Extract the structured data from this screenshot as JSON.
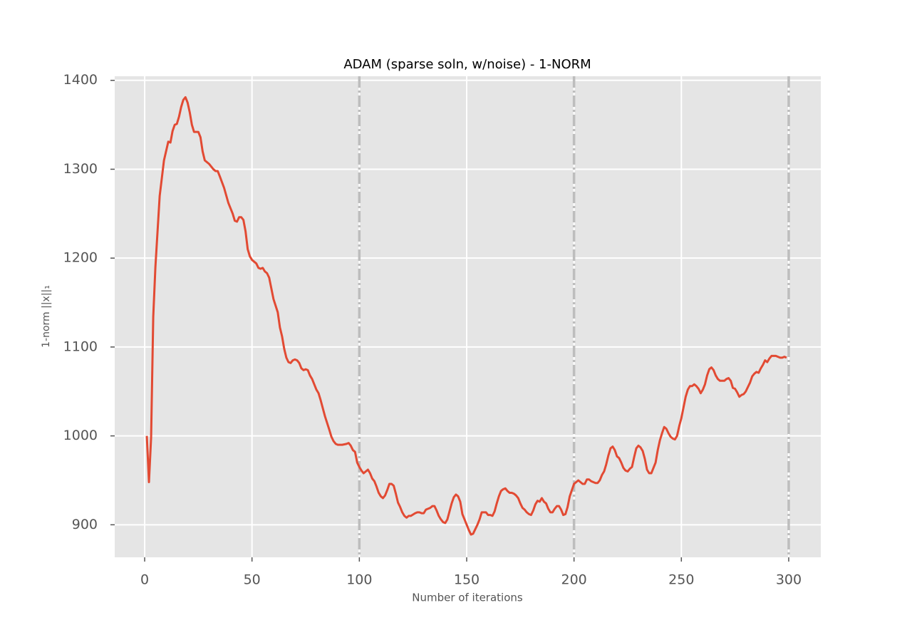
{
  "chart_data": {
    "type": "line",
    "title": "ADAM (sparse soln, w/noise) - 1-NORM",
    "xlabel": "Number of iterations",
    "ylabel": "1-norm ||x||₁",
    "color": "#e24a33",
    "grid": true,
    "xlim": [
      -13.95,
      314.95
    ],
    "ylim": [
      863.4,
      1404.6
    ],
    "xticks": [
      0,
      50,
      100,
      150,
      200,
      250,
      300
    ],
    "yticks": [
      900,
      1000,
      1100,
      1200,
      1300,
      1400
    ],
    "vlines": [
      100,
      200,
      300
    ],
    "vline_color": "#bdbdbd",
    "x": [
      1,
      2,
      3,
      4,
      5,
      7,
      9,
      11,
      12,
      13,
      14,
      15,
      16,
      17,
      18,
      19,
      20,
      21,
      22,
      23,
      24,
      25,
      26,
      27,
      28,
      30,
      32,
      33,
      34,
      35,
      37,
      39,
      41,
      42,
      43,
      44,
      45,
      46,
      47,
      48,
      49,
      50,
      51,
      52,
      53,
      54,
      55,
      56,
      57,
      58,
      59,
      60,
      62,
      63,
      64,
      65,
      66,
      67,
      68,
      69,
      70,
      71,
      72,
      73,
      74,
      75,
      76,
      77,
      78,
      79,
      80,
      81,
      82,
      83,
      84,
      86,
      87,
      88,
      89,
      90,
      92,
      94,
      95,
      96,
      97,
      98,
      99,
      100,
      101,
      102,
      103,
      104,
      105,
      106,
      107,
      108,
      109,
      110,
      111,
      112,
      113,
      114,
      115,
      116,
      117,
      118,
      119,
      120,
      121,
      122,
      123,
      124,
      126,
      127,
      128,
      129,
      130,
      131,
      133,
      134,
      135,
      136,
      137,
      138,
      139,
      140,
      141,
      142,
      143,
      144,
      145,
      146,
      147,
      148,
      149,
      150,
      151,
      152,
      153,
      154,
      155,
      156,
      157,
      158,
      159,
      160,
      161,
      162,
      163,
      164,
      165,
      166,
      167,
      168,
      169,
      170,
      171,
      172,
      173,
      174,
      175,
      176,
      177,
      178,
      179,
      180,
      181,
      182,
      183,
      184,
      185,
      186,
      187,
      188,
      189,
      190,
      191,
      192,
      193,
      194,
      195,
      196,
      197,
      198,
      199,
      200,
      201,
      202,
      203,
      204,
      205,
      206,
      207,
      208,
      209,
      210,
      211,
      212,
      213,
      214,
      215,
      216,
      217,
      218,
      219,
      220,
      221,
      222,
      223,
      224,
      225,
      226,
      227,
      228,
      229,
      230,
      231,
      232,
      233,
      234,
      235,
      236,
      237,
      238,
      239,
      240,
      241,
      242,
      243,
      244,
      245,
      246,
      247,
      248,
      249,
      250,
      251,
      252,
      253,
      254,
      255,
      256,
      257,
      258,
      259,
      260,
      261,
      262,
      263,
      264,
      265,
      266,
      267,
      268,
      269,
      270,
      271,
      272,
      273,
      274,
      275,
      276,
      277,
      278,
      279,
      280,
      281,
      282,
      283,
      284,
      285,
      286,
      287,
      288,
      289,
      290,
      291,
      292,
      293,
      294,
      295,
      296,
      297,
      298,
      299
    ],
    "values": [
      1000,
      948,
      998,
      1134,
      1190,
      1270,
      1310,
      1331,
      1330,
      1343,
      1350,
      1351,
      1359,
      1370,
      1378,
      1381,
      1375,
      1364,
      1350,
      1342,
      1342,
      1342,
      1336,
      1320,
      1310,
      1306,
      1300,
      1298,
      1298,
      1292,
      1279,
      1262,
      1250,
      1242,
      1241,
      1246,
      1246,
      1243,
      1230,
      1210,
      1202,
      1198,
      1196,
      1194,
      1189,
      1188,
      1189,
      1185,
      1183,
      1178,
      1166,
      1154,
      1139,
      1122,
      1112,
      1098,
      1088,
      1083,
      1082,
      1085,
      1086,
      1085,
      1082,
      1076,
      1074,
      1075,
      1074,
      1068,
      1064,
      1058,
      1052,
      1048,
      1040,
      1031,
      1022,
      1007,
      999,
      994,
      991,
      990,
      990,
      991,
      992,
      989,
      984,
      982,
      970,
      965,
      961,
      958,
      960,
      962,
      958,
      952,
      949,
      943,
      936,
      932,
      930,
      933,
      939,
      946,
      946,
      944,
      935,
      925,
      920,
      914,
      910,
      908,
      910,
      910,
      913,
      914,
      914,
      913,
      913,
      917,
      919,
      921,
      921,
      916,
      910,
      906,
      903,
      902,
      906,
      915,
      924,
      931,
      934,
      932,
      926,
      912,
      906,
      900,
      894,
      889,
      890,
      895,
      900,
      906,
      914,
      914,
      914,
      911,
      911,
      910,
      915,
      924,
      932,
      938,
      940,
      941,
      938,
      936,
      936,
      935,
      933,
      930,
      924,
      919,
      917,
      914,
      912,
      911,
      916,
      923,
      927,
      926,
      930,
      926,
      924,
      918,
      914,
      914,
      918,
      921,
      921,
      917,
      911,
      912,
      920,
      932,
      939,
      946,
      948,
      950,
      948,
      946,
      946,
      951,
      951,
      949,
      948,
      947,
      947,
      950,
      956,
      960,
      968,
      978,
      986,
      988,
      984,
      977,
      975,
      970,
      964,
      961,
      960,
      963,
      965,
      976,
      986,
      989,
      987,
      983,
      974,
      962,
      958,
      958,
      964,
      970,
      984,
      995,
      1003,
      1010,
      1008,
      1003,
      999,
      997,
      996,
      1000,
      1011,
      1020,
      1032,
      1044,
      1052,
      1056,
      1056,
      1058,
      1056,
      1053,
      1048,
      1052,
      1058,
      1068,
      1075,
      1077,
      1074,
      1068,
      1064,
      1062,
      1062,
      1062,
      1064,
      1065,
      1062,
      1054,
      1053,
      1049,
      1044,
      1046,
      1047,
      1050,
      1055,
      1060,
      1067,
      1070,
      1072,
      1071,
      1076,
      1080,
      1085,
      1083,
      1087,
      1090,
      1090,
      1090,
      1089,
      1088,
      1088,
      1089,
      1088
    ]
  }
}
